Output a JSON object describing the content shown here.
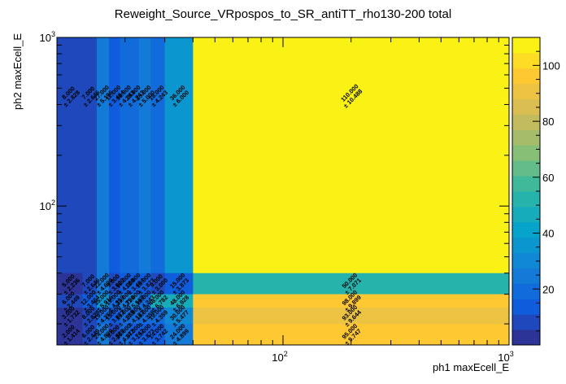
{
  "chart_data": {
    "type": "heatmap",
    "title": "Reweight_Source_VRpospos_to_SR_antiTT_rho130-200 total",
    "xlabel": "ph1 maxEcell_E",
    "ylabel": "ph2 maxEcell_E",
    "xscale": "log",
    "yscale": "log",
    "xlim": [
      10,
      1000
    ],
    "ylim": [
      15,
      1000
    ],
    "x_ticks": [
      {
        "v": 100,
        "b": "10",
        "e": "2"
      },
      {
        "v": 1000,
        "b": "10",
        "e": "3"
      }
    ],
    "y_ticks": [
      {
        "v": 100,
        "b": "10",
        "e": "2"
      },
      {
        "v": 1000,
        "b": "10",
        "e": "3"
      }
    ],
    "x_edges": [
      10,
      13,
      15,
      17,
      19,
      21,
      23,
      26,
      30,
      40,
      1000
    ],
    "y_edges": [
      15,
      20,
      25,
      30,
      40,
      1000
    ],
    "z_range": [
      0,
      110
    ],
    "colorbar_ticks": [
      20,
      40,
      60,
      80,
      100
    ],
    "colormap": [
      "#352a87",
      "#0f5cdd",
      "#1481d6",
      "#06a4ca",
      "#2eb7a4",
      "#87bf77",
      "#d1bb59",
      "#fec832",
      "#f9fb0e"
    ],
    "cells": [
      {
        "xi": 0,
        "yi": 4,
        "v": "8.000",
        "e": "± 2.828",
        "z": 8
      },
      {
        "xi": 1,
        "yi": 4,
        "v": "7.000",
        "e": "± 2.646",
        "z": 7
      },
      {
        "xi": 2,
        "yi": 4,
        "v": "27.000",
        "e": "± 5.196",
        "z": 27
      },
      {
        "xi": 3,
        "yi": 4,
        "v": "12.000",
        "e": "± 3.464",
        "z": 12
      },
      {
        "xi": 4,
        "yi": 4,
        "v": "18.000",
        "e": "± 4.243",
        "z": 18
      },
      {
        "xi": 5,
        "yi": 4,
        "v": "18.000",
        "e": "± 4.243",
        "z": 18
      },
      {
        "xi": 6,
        "yi": 4,
        "v": "25.000",
        "e": "± 5.000",
        "z": 25
      },
      {
        "xi": 7,
        "yi": 4,
        "v": "18.000",
        "e": "± 4.243",
        "z": 18
      },
      {
        "xi": 8,
        "yi": 4,
        "v": "36.000",
        "e": "± 6.000",
        "z": 36
      },
      {
        "xi": 9,
        "yi": 4,
        "v": "110.000",
        "e": "± 10.488",
        "z": 110
      },
      {
        "xi": 0,
        "yi": 3,
        "v": "5.000",
        "e": "± 2.236",
        "z": 5
      },
      {
        "xi": 1,
        "yi": 3,
        "v": "7.000",
        "e": "± 2.646",
        "z": 7
      },
      {
        "xi": 2,
        "yi": 3,
        "v": "22.000",
        "e": "± 4.690",
        "z": 22
      },
      {
        "xi": 3,
        "yi": 3,
        "v": "9.000",
        "e": "± 3.000",
        "z": 9
      },
      {
        "xi": 4,
        "yi": 3,
        "v": "16.000",
        "e": "± 4.000",
        "z": 16
      },
      {
        "xi": 5,
        "yi": 3,
        "v": "12.000",
        "e": "± 3.464",
        "z": 12
      },
      {
        "xi": 6,
        "yi": 3,
        "v": "15.000",
        "e": "± 3.873",
        "z": 15
      },
      {
        "xi": 7,
        "yi": 3,
        "v": "9.000",
        "e": "± 3.000",
        "z": 9
      },
      {
        "xi": 8,
        "yi": 3,
        "v": "15.000",
        "e": "± 3.873",
        "z": 15
      },
      {
        "xi": 9,
        "yi": 3,
        "v": "50.000",
        "e": "± 7.071",
        "z": 50
      },
      {
        "xi": 0,
        "yi": 2,
        "v": "6.000",
        "e": "± 2.449",
        "z": 6
      },
      {
        "xi": 1,
        "yi": 2,
        "v": "12.000",
        "e": "± 3.464",
        "z": 12
      },
      {
        "xi": 2,
        "yi": 2,
        "v": "35.000",
        "e": "± 5.916",
        "z": 35
      },
      {
        "xi": 3,
        "yi": 2,
        "v": "19.000",
        "e": "± 4.359",
        "z": 19
      },
      {
        "xi": 4,
        "yi": 2,
        "v": "23.000",
        "e": "± 4.796",
        "z": 23
      },
      {
        "xi": 5,
        "yi": 2,
        "v": "31.000",
        "e": "± 5.568",
        "z": 31
      },
      {
        "xi": 6,
        "yi": 2,
        "v": "18.000",
        "e": "± 4.243",
        "z": 18
      },
      {
        "xi": 7,
        "yi": 2,
        "v": "46.000",
        "e": "± 6.782",
        "z": 46
      },
      {
        "xi": 8,
        "yi": 2,
        "v": "48.000",
        "e": "± 6.928",
        "z": 48
      },
      {
        "xi": 9,
        "yi": 2,
        "v": "98.000",
        "e": "± 9.899",
        "z": 98
      },
      {
        "xi": 0,
        "yi": 1,
        "v": "3.000",
        "e": "± 1.732",
        "z": 3
      },
      {
        "xi": 1,
        "yi": 1,
        "v": "8.000",
        "e": "± 2.828",
        "z": 8
      },
      {
        "xi": 2,
        "yi": 1,
        "v": "19.000",
        "e": "± 4.359",
        "z": 19
      },
      {
        "xi": 3,
        "yi": 1,
        "v": "15.000",
        "e": "± 3.873",
        "z": 15
      },
      {
        "xi": 4,
        "yi": 1,
        "v": "19.000",
        "e": "± 4.359",
        "z": 19
      },
      {
        "xi": 5,
        "yi": 1,
        "v": "17.000",
        "e": "± 4.123",
        "z": 17
      },
      {
        "xi": 6,
        "yi": 1,
        "v": "19.000",
        "e": "± 4.359",
        "z": 19
      },
      {
        "xi": 7,
        "yi": 1,
        "v": "19.000",
        "e": "± 4.359",
        "z": 19
      },
      {
        "xi": 8,
        "yi": 1,
        "v": "30.000",
        "e": "± 5.477",
        "z": 30
      },
      {
        "xi": 9,
        "yi": 1,
        "v": "93.000",
        "e": "± 9.644",
        "z": 93
      },
      {
        "xi": 0,
        "yi": 0,
        "v": "2.000",
        "e": "± 1.414",
        "z": 2
      },
      {
        "xi": 1,
        "yi": 0,
        "v": "6.000",
        "e": "± 2.449",
        "z": 6
      },
      {
        "xi": 2,
        "yi": 0,
        "v": "24.000",
        "e": "± 4.899",
        "z": 24
      },
      {
        "xi": 3,
        "yi": 0,
        "v": "8.000",
        "e": "± 2.828",
        "z": 8
      },
      {
        "xi": 4,
        "yi": 0,
        "v": "20.000",
        "e": "± 4.472",
        "z": 20
      },
      {
        "xi": 5,
        "yi": 0,
        "v": "14.000",
        "e": "± 3.742",
        "z": 14
      },
      {
        "xi": 6,
        "yi": 0,
        "v": "15.000",
        "e": "± 3.873",
        "z": 15
      },
      {
        "xi": 7,
        "yi": 0,
        "v": "14.000",
        "e": "± 3.742",
        "z": 14
      },
      {
        "xi": 8,
        "yi": 0,
        "v": "24.000",
        "e": "± 4.899",
        "z": 24
      },
      {
        "xi": 9,
        "yi": 0,
        "v": "95.000",
        "e": "± 9.747",
        "z": 95
      }
    ]
  }
}
